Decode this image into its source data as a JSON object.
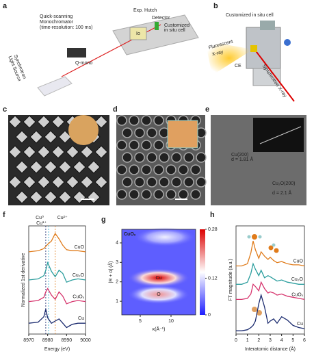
{
  "figure": {
    "a": {
      "label": "a",
      "mono": [
        "Quick-scanning",
        "Monochromator",
        "(time-resolution: 100 ms)"
      ],
      "hutch": "Exp. Hutch",
      "source": [
        "Synchrotron",
        "Light Source"
      ],
      "qmono": "Q-mono",
      "io": "Io",
      "detector": "Detector",
      "cell": [
        "Customized",
        "in situ cell"
      ]
    },
    "b": {
      "label": "b",
      "title": "Customized in situ cell",
      "fluor": [
        "Fluorescent",
        "X-ray"
      ],
      "sync": "Synchrotron X-ray",
      "ce": "CE"
    },
    "c": {
      "label": "c"
    },
    "d": {
      "label": "d"
    },
    "e": {
      "label": "e",
      "notes": [
        "Cu(200)",
        "d = 1.81 Å",
        "Cu₂O(200)",
        "d = 2.1 Å"
      ]
    }
  },
  "chart_data": [
    {
      "type": "line",
      "panel_label": "f",
      "xlabel": "Energy (eV)",
      "ylabel": "Normalized 1st derivative",
      "x": [
        8970,
        8975,
        8978,
        8979,
        8980,
        8982,
        8984,
        8986,
        8988,
        8990,
        8993,
        8996,
        9000
      ],
      "xlim": [
        8970,
        9000
      ],
      "xticks": [
        8970,
        8980,
        8990,
        9000
      ],
      "ylim": [
        0,
        10
      ],
      "series": [
        {
          "name": "CuO",
          "color": "#e07b1a",
          "values": [
            7.6,
            7.7,
            7.9,
            8.1,
            8.3,
            8.6,
            9.3,
            8.8,
            8.2,
            7.8,
            7.7,
            7.7,
            7.6
          ]
        },
        {
          "name": "Cu₂O",
          "color": "#2a9d9d",
          "values": [
            5.0,
            5.1,
            5.4,
            5.9,
            6.6,
            5.8,
            5.3,
            5.9,
            5.6,
            4.8,
            5.0,
            5.1,
            5.0
          ]
        },
        {
          "name": "CuOₓ",
          "color": "#d6336c",
          "values": [
            3.0,
            3.1,
            3.4,
            3.9,
            4.2,
            3.6,
            3.2,
            3.9,
            3.5,
            2.8,
            3.0,
            3.1,
            3.0
          ]
        },
        {
          "name": "Cu",
          "color": "#1a2a6e",
          "values": [
            1.0,
            1.1,
            1.6,
            2.3,
            1.5,
            1.0,
            1.2,
            1.4,
            1.0,
            0.6,
            0.9,
            1.0,
            1.0
          ]
        }
      ],
      "markers": [
        {
          "value": 8979,
          "label": "Cu⁰",
          "color": "#1a2a6e"
        },
        {
          "value": 8980.5,
          "label": "Cu¹⁺",
          "color": "#2aa8c8"
        },
        {
          "value": 8984,
          "label": "Cu²⁺",
          "color": "#e07b1a"
        }
      ]
    },
    {
      "type": "heatmap",
      "panel_label": "g",
      "title": "CuOₓ",
      "xlabel": "κ(Å⁻¹)",
      "ylabel": "|R + α| (Å)",
      "xlim": [
        2,
        14
      ],
      "xticks": [
        5,
        10
      ],
      "ylim": [
        0.3,
        4.7
      ],
      "yticks": [
        1,
        2,
        3,
        4
      ],
      "clim": [
        0,
        0.28
      ],
      "cticks": [
        0,
        0.12,
        0.28
      ],
      "background": 0.04,
      "features": [
        {
          "label": "Cu",
          "k": 8,
          "r": 2.2,
          "value": 0.28
        },
        {
          "label": "O",
          "k": 8,
          "r": 1.35,
          "value": 0.2
        },
        {
          "label": null,
          "k": 9,
          "r": 4.3,
          "value": 0.13
        }
      ]
    },
    {
      "type": "line",
      "panel_label": "h",
      "xlabel": "Interatomic distance (Å)",
      "ylabel": "FT magnitude (a.u.)",
      "x": [
        0,
        0.5,
        1,
        1.3,
        1.5,
        1.7,
        2,
        2.2,
        2.5,
        2.8,
        3,
        3.3,
        3.6,
        4,
        4.5,
        5,
        5.5,
        6
      ],
      "xlim": [
        0,
        6
      ],
      "xticks": [
        0,
        1,
        2,
        3,
        4,
        5,
        6
      ],
      "ylim": [
        0,
        10
      ],
      "series": [
        {
          "name": "CuO",
          "color": "#e07b1a",
          "values": [
            6.3,
            6.3,
            6.5,
            7.5,
            8.6,
            7.8,
            7.0,
            7.6,
            7.2,
            6.9,
            7.1,
            6.8,
            6.6,
            6.7,
            6.5,
            6.4,
            6.4,
            6.3
          ]
        },
        {
          "name": "Cu₂O",
          "color": "#2a9d9d",
          "values": [
            4.6,
            4.6,
            4.8,
            5.6,
            6.5,
            6.0,
            5.4,
            5.9,
            5.2,
            5.4,
            5.3,
            5.1,
            4.9,
            5.0,
            4.8,
            4.7,
            4.6,
            4.6
          ]
        },
        {
          "name": "CuOₓ",
          "color": "#d6336c",
          "values": [
            3.2,
            3.2,
            3.3,
            3.7,
            4.6,
            4.4,
            4.0,
            4.8,
            4.2,
            3.8,
            3.9,
            3.8,
            3.6,
            3.7,
            3.5,
            3.4,
            3.3,
            3.2
          ]
        },
        {
          "name": "Cu",
          "color": "#1a2a6e",
          "values": [
            0.3,
            0.3,
            0.4,
            0.6,
            0.8,
            1.2,
            2.8,
            3.6,
            2.5,
            1.0,
            1.2,
            1.4,
            1.0,
            1.6,
            1.3,
            0.8,
            0.6,
            0.5
          ]
        }
      ]
    }
  ]
}
